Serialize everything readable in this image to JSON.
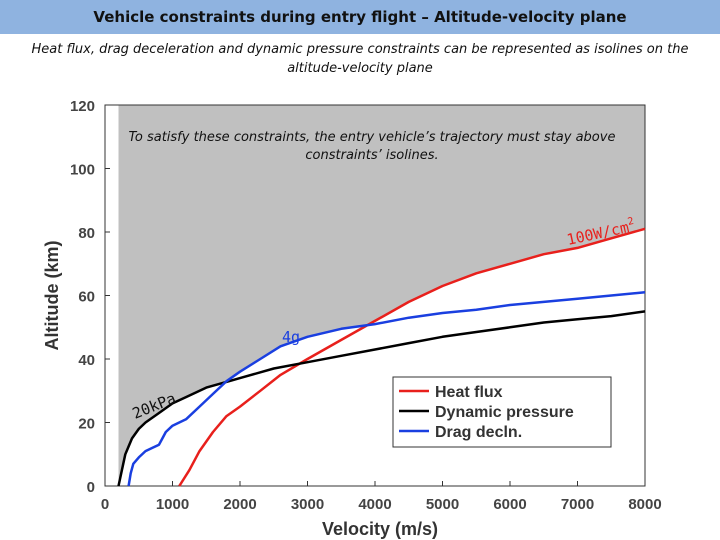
{
  "slide": {
    "title": "Vehicle constraints during entry flight – Altitude-velocity plane",
    "subtitle": "Heat flux, drag deceleration and dynamic pressure constraints can be represented as isolines on the altitude-velocity plane"
  },
  "chart_data": {
    "type": "line",
    "xlabel": "Velocity (m/s)",
    "ylabel": "Altitude (km)",
    "xlim": [
      0,
      8000
    ],
    "ylim": [
      0,
      120
    ],
    "xticks": [
      0,
      1000,
      2000,
      3000,
      4000,
      5000,
      6000,
      7000,
      8000
    ],
    "yticks": [
      0,
      20,
      40,
      60,
      80,
      100,
      120
    ],
    "grid": false,
    "legend_position": "lower-right",
    "annotation": "To satisfy these constraints, the entry vehicle’s trajectory must stay above constraints’ isolines.",
    "curve_labels": {
      "heat_flux": "100W/cm",
      "heat_flux_exp": "2",
      "drag": "4g",
      "dynamic_pressure": "20kPa"
    },
    "feasible_region_color": "#c0c0c0",
    "series": [
      {
        "name": "Heat flux",
        "color": "#e8201c",
        "x": [
          1100,
          1250,
          1400,
          1600,
          1800,
          2000,
          2300,
          2600,
          3000,
          3500,
          4000,
          4500,
          5000,
          5500,
          6000,
          6500,
          7000,
          7500,
          8000
        ],
        "y": [
          0,
          5,
          11,
          17,
          22,
          25,
          30,
          35,
          40,
          46,
          52,
          58,
          63,
          67,
          70,
          73,
          75,
          78,
          81
        ]
      },
      {
        "name": "Dynamic pressure",
        "color": "#000000",
        "x": [
          200,
          250,
          300,
          400,
          500,
          600,
          800,
          1000,
          1200,
          1500,
          2000,
          2500,
          3000,
          3500,
          4000,
          4500,
          5000,
          5500,
          6000,
          6500,
          7000,
          7500,
          8000
        ],
        "y": [
          0,
          5,
          10,
          15,
          18,
          20,
          23,
          26,
          28,
          31,
          34,
          37,
          39,
          41,
          43,
          45,
          47,
          48.5,
          50,
          51.5,
          52.5,
          53.5,
          55
        ]
      },
      {
        "name": "Drag decln.",
        "color": "#1a3fe0",
        "x": [
          350,
          380,
          420,
          500,
          600,
          700,
          800,
          850,
          900,
          1000,
          1200,
          1400,
          1600,
          1800,
          2000,
          2300,
          2600,
          3000,
          3500,
          4000,
          4500,
          5000,
          5500,
          6000,
          6500,
          7000,
          7500,
          8000
        ],
        "y": [
          0,
          4,
          7,
          9,
          11,
          12,
          13,
          15,
          17,
          19,
          21,
          25,
          29,
          33,
          36,
          40,
          44,
          47,
          49.5,
          51,
          53,
          54.5,
          55.5,
          57,
          58,
          59,
          60,
          61
        ]
      }
    ]
  }
}
